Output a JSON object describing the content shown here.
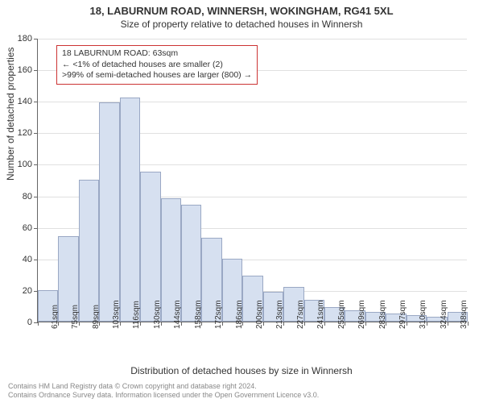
{
  "title": {
    "main": "18, LABURNUM ROAD, WINNERSH, WOKINGHAM, RG41 5XL",
    "sub": "Size of property relative to detached houses in Winnersh"
  },
  "chart": {
    "type": "histogram",
    "ylabel": "Number of detached properties",
    "xlabel": "Distribution of detached houses by size in Winnersh",
    "ylim": [
      0,
      180
    ],
    "ytick_step": 20,
    "yticks": [
      0,
      20,
      40,
      60,
      80,
      100,
      120,
      140,
      160,
      180
    ],
    "x_categories": [
      "61sqm",
      "75sqm",
      "89sqm",
      "103sqm",
      "116sqm",
      "130sqm",
      "144sqm",
      "158sqm",
      "172sqm",
      "186sqm",
      "200sqm",
      "213sqm",
      "227sqm",
      "241sqm",
      "255sqm",
      "269sqm",
      "283sqm",
      "297sqm",
      "310sqm",
      "324sqm",
      "338sqm"
    ],
    "values": [
      20,
      54,
      90,
      139,
      142,
      95,
      78,
      74,
      53,
      40,
      29,
      19,
      22,
      14,
      9,
      7,
      6,
      5,
      4,
      3,
      6
    ],
    "bar_fill": "#d6e0f0",
    "bar_border": "#9aa8c4",
    "grid_color": "#e0e0e0",
    "axis_color": "#666666",
    "background_color": "#ffffff",
    "title_fontsize": 13,
    "label_fontsize": 12,
    "tick_fontsize": 11
  },
  "info_box": {
    "line1": "18 LABURNUM ROAD: 63sqm",
    "line2": "← <1% of detached houses are smaller (2)",
    "line3": ">99% of semi-detached houses are larger (800) →",
    "border_color": "#cc3333"
  },
  "footer": {
    "line1": "Contains HM Land Registry data © Crown copyright and database right 2024.",
    "line2": "Contains Ordnance Survey data. Information licensed under the Open Government Licence v3.0."
  }
}
